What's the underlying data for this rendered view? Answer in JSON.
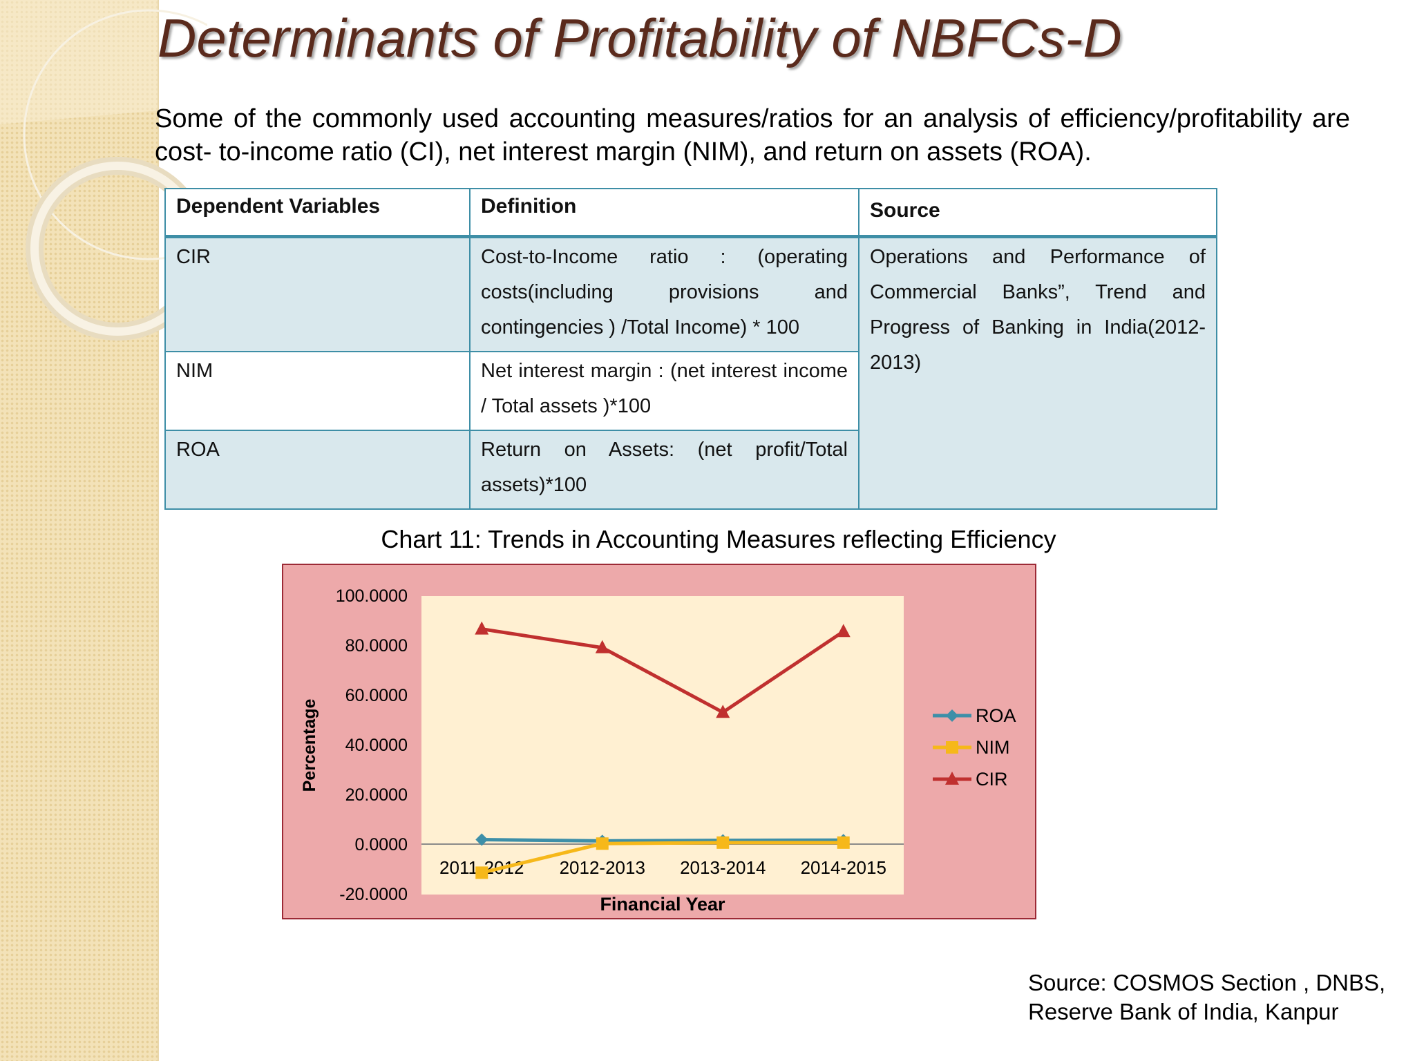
{
  "title": "Determinants of Profitability of NBFCs-D",
  "intro": "Some of the commonly used accounting measures/ratios for an analysis of efficiency/profitability are cost- to-income ratio    (CI), net interest margin (NIM), and return on assets (ROA).",
  "table": {
    "headers": [
      "Dependent Variables",
      "Definition",
      "Source"
    ],
    "rows": [
      {
        "variable": "CIR",
        "definition": "Cost-to-Income ratio : (operating costs(including provisions and contingencies ) /Total Income) * 100"
      },
      {
        "variable": "NIM",
        "definition": "Net interest margin : (net interest income / Total assets )*100"
      },
      {
        "variable": "ROA",
        "definition": "Return on Assets: (net profit/Total assets)*100"
      }
    ],
    "source": "Operations and Performance of Commercial Banks”, Trend and Progress of Banking in India(2012-2013)"
  },
  "chart_data": {
    "type": "line",
    "title": "Chart 11: Trends in Accounting Measures reflecting Efficiency",
    "xlabel": "Financial Year",
    "ylabel": "Percentage",
    "categories": [
      "2011-2012",
      "2012-2013",
      "2013-2014",
      "2014-2015"
    ],
    "ylim": [
      -20,
      100
    ],
    "yticks": [
      100,
      80,
      60,
      40,
      20,
      0,
      -20
    ],
    "ytick_labels": [
      "100.0000",
      "80.0000",
      "60.0000",
      "40.0000",
      "20.0000",
      "0.0000",
      "-20.0000"
    ],
    "series": [
      {
        "name": "ROA",
        "values": [
          1.8,
          1.3,
          1.5,
          1.6
        ],
        "color": "#3d8fa8",
        "marker": "diamond"
      },
      {
        "name": "NIM",
        "values": [
          -11.5,
          0.2,
          0.6,
          0.6
        ],
        "color": "#f6b81a",
        "marker": "square"
      },
      {
        "name": "CIR",
        "values": [
          86.5,
          79,
          53,
          85.5
        ],
        "color": "#c0302f",
        "marker": "triangle"
      }
    ],
    "legend": "right",
    "grid": false,
    "colors": {
      "outer_bg": "#eda9aa",
      "outer_border": "#9c2a36",
      "plot_bg": "#fff0d2",
      "axis": "#8a8a8a"
    }
  },
  "source_note": "Source: COSMOS Section , DNBS, Reserve Bank of India, Kanpur"
}
